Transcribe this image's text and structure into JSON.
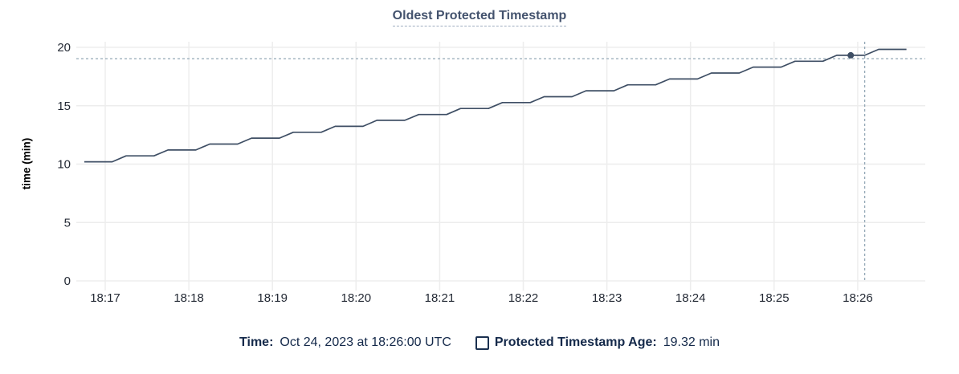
{
  "title": "Oldest Protected Timestamp",
  "y_axis_label": "time (min)",
  "footer": {
    "time_label": "Time:",
    "time_value": "Oct 24, 2023 at 18:26:00 UTC",
    "legend_label": "Protected Timestamp Age:",
    "legend_value": "19.32 min",
    "legend_checkbox_checked": false
  },
  "colors": {
    "line": "#3e4e64",
    "grid": "#ededed",
    "crosshair": "#93a7b6",
    "title_text": "#44536e",
    "title_underline": "#9fadc0",
    "footer_text": "#14294a",
    "tick_label": "#242a35",
    "axis_title": "#000000",
    "background": "#ffffff"
  },
  "chart_data": {
    "type": "line",
    "title": "Oldest Protected Timestamp",
    "xlabel": "",
    "ylabel": "time (min)",
    "ylim": [
      0,
      20
    ],
    "y_ticks": [
      0,
      5,
      10,
      15,
      20
    ],
    "x_tick_labels": [
      "18:17",
      "18:18",
      "18:19",
      "18:20",
      "18:21",
      "18:22",
      "18:23",
      "18:24",
      "18:25",
      "18:26"
    ],
    "x_window": [
      "18:16:45",
      "18:26:45"
    ],
    "grid": true,
    "legend_position": "bottom",
    "series": [
      {
        "name": "Protected Timestamp Age",
        "unit": "min",
        "sample_interval_sec": 10,
        "start": "18:16:45",
        "end": "18:26:35",
        "step_levels": [
          [
            "18:16:45",
            10.2
          ],
          [
            "18:17:15",
            10.71
          ],
          [
            "18:17:45",
            11.21
          ],
          [
            "18:18:15",
            11.72
          ],
          [
            "18:18:45",
            12.23
          ],
          [
            "18:19:15",
            12.73
          ],
          [
            "18:19:45",
            13.24
          ],
          [
            "18:20:15",
            13.75
          ],
          [
            "18:20:45",
            14.25
          ],
          [
            "18:21:15",
            14.76
          ],
          [
            "18:21:45",
            15.27
          ],
          [
            "18:22:15",
            15.77
          ],
          [
            "18:22:45",
            16.28
          ],
          [
            "18:23:15",
            16.79
          ],
          [
            "18:23:45",
            17.29
          ],
          [
            "18:24:15",
            17.8
          ],
          [
            "18:24:45",
            18.31
          ],
          [
            "18:25:15",
            18.81
          ],
          [
            "18:25:45",
            19.32
          ],
          [
            "18:26:15",
            19.83
          ]
        ]
      }
    ],
    "hover": {
      "snap_time": "18:25:55",
      "snap_value": 19.32,
      "display_time": "Oct 24, 2023 at 18:26:00 UTC",
      "display_value": "19.32 min",
      "crosshair_time": "18:26:05",
      "crosshair_value": 19.03
    }
  }
}
